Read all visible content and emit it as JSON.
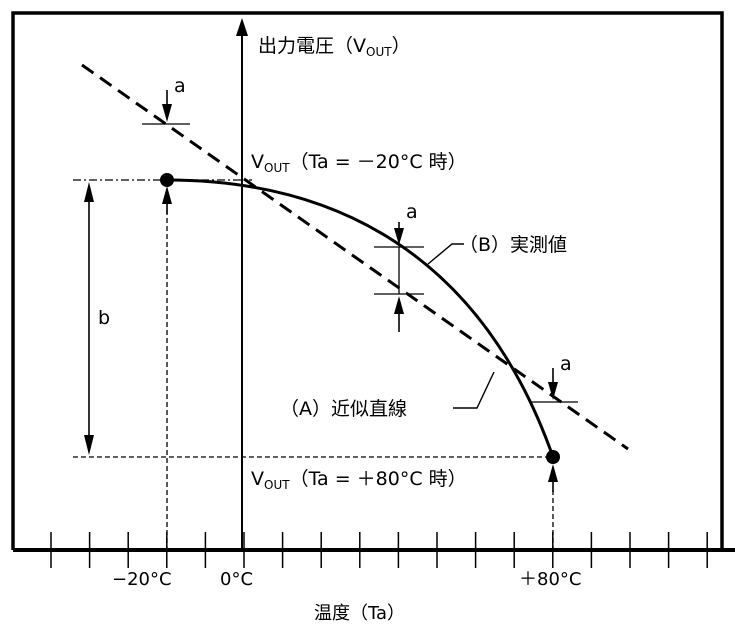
{
  "y_axis": {
    "main": "出力電圧（V",
    "sub": "OUT",
    "close": "）"
  },
  "point_m20": {
    "main": "V",
    "sub": "OUT",
    "rest": "（Ta = －20°C 時）"
  },
  "point_p80": {
    "main": "V",
    "sub": "OUT",
    "rest": "（Ta = ＋80°C 時）"
  },
  "series": {
    "measured": "（B）実測値",
    "approx": "（A）近似直線"
  },
  "markers": {
    "a": "a",
    "b": "b"
  },
  "x_ticks": {
    "m20": "−20°C",
    "zero": "0°C",
    "p80": "＋80°C"
  },
  "x_axis_title": "温度（Ta）",
  "colors": {
    "ink": "#000000",
    "background": "#ffffff"
  }
}
